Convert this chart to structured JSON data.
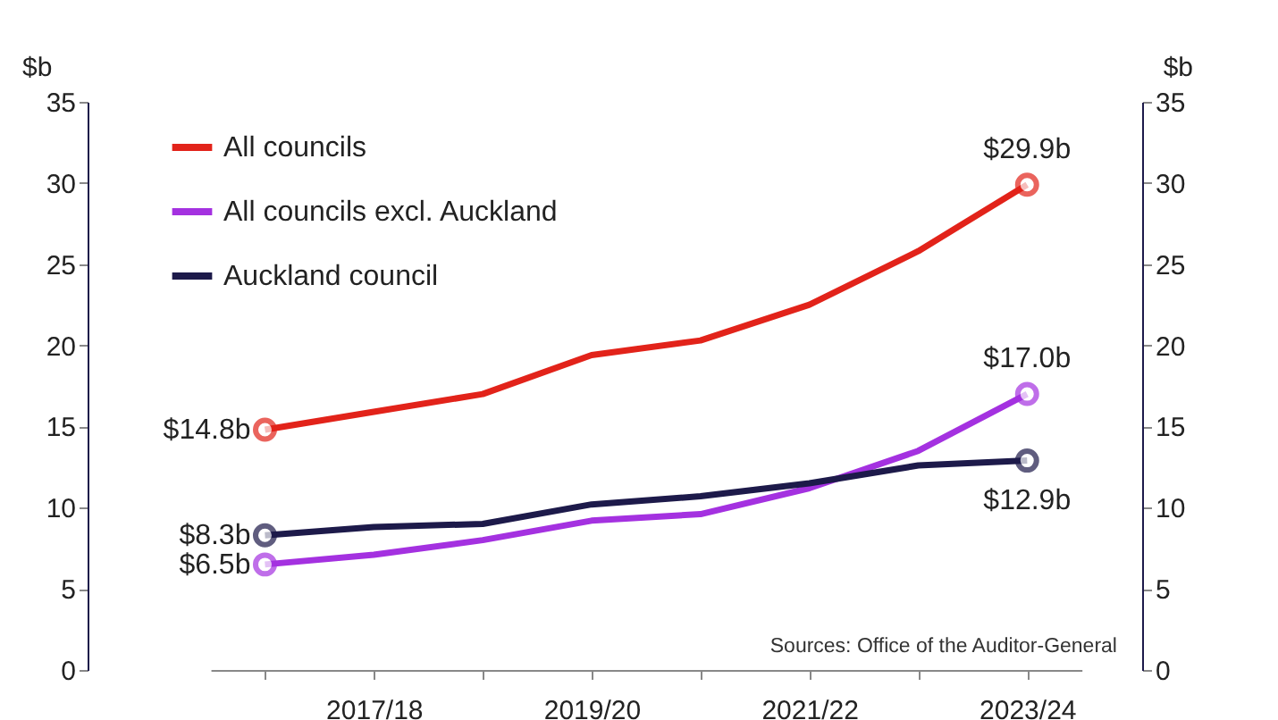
{
  "chart_data": {
    "type": "line",
    "categories": [
      null,
      "2017/18",
      null,
      "2019/20",
      null,
      "2021/22",
      null,
      "2023/24"
    ],
    "series": [
      {
        "name": "All councils",
        "color": "#e2231a",
        "values": [
          14.8,
          15.9,
          17.0,
          19.4,
          20.3,
          22.5,
          25.8,
          29.9
        ],
        "value_labels": [
          "$14.8b",
          null,
          null,
          null,
          null,
          null,
          null,
          "$29.9b"
        ]
      },
      {
        "name": "All councils excl. Auckland",
        "color": "#a431e0",
        "values": [
          6.5,
          7.1,
          8.0,
          9.2,
          9.6,
          11.2,
          13.5,
          17.0
        ],
        "value_labels": [
          "$6.5b",
          null,
          null,
          null,
          null,
          null,
          null,
          "$17.0b"
        ]
      },
      {
        "name": "Auckland council",
        "color": "#1d1a4a",
        "values": [
          8.3,
          8.8,
          9.0,
          10.2,
          10.7,
          11.5,
          12.6,
          12.9
        ],
        "value_labels": [
          "$8.3b",
          null,
          null,
          null,
          null,
          null,
          null,
          "$12.9b"
        ]
      }
    ],
    "ylabel": "$b",
    "y2label": "$b",
    "ylim": [
      0,
      35
    ],
    "yticks": [
      0,
      5,
      10,
      15,
      20,
      25,
      30,
      35
    ],
    "y2lim": [
      0,
      35
    ],
    "y2ticks": [
      0,
      5,
      10,
      15,
      20,
      25,
      30,
      35
    ],
    "grid": false,
    "legend": "top left",
    "annotations": [
      "Sources: Office of the Auditor-General"
    ]
  }
}
